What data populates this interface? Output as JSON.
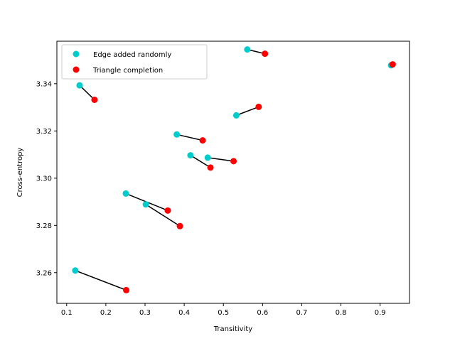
{
  "chart_data": {
    "type": "scatter",
    "xlabel": "Transitivity",
    "ylabel": "Cross-entropy",
    "xlim": [
      0.075,
      0.975
    ],
    "ylim": [
      3.247,
      3.358
    ],
    "x_ticks": [
      "0.1",
      "0.2",
      "0.3",
      "0.4",
      "0.5",
      "0.6",
      "0.7",
      "0.8",
      "0.9"
    ],
    "y_ticks": [
      "3.26",
      "3.28",
      "3.30",
      "3.32",
      "3.34"
    ],
    "grid": false,
    "legend_position": "top-left",
    "series": [
      {
        "name": "Edge added randomly",
        "color": "#00cccc",
        "points": [
          [
            0.561,
            3.3545
          ],
          [
            0.928,
            3.3478
          ],
          [
            0.133,
            3.3393
          ],
          [
            0.533,
            3.3266
          ],
          [
            0.381,
            3.3185
          ],
          [
            0.416,
            3.3097
          ],
          [
            0.46,
            3.3087
          ],
          [
            0.251,
            3.2935
          ],
          [
            0.302,
            3.2889
          ],
          [
            0.122,
            3.2609
          ]
        ]
      },
      {
        "name": "Triangle completion",
        "color": "#ff0000",
        "points": [
          [
            0.606,
            3.3527
          ],
          [
            0.932,
            3.3482
          ],
          [
            0.171,
            3.3332
          ],
          [
            0.59,
            3.3302
          ],
          [
            0.447,
            3.316
          ],
          [
            0.467,
            3.3045
          ],
          [
            0.526,
            3.3072
          ],
          [
            0.358,
            3.2863
          ],
          [
            0.389,
            3.2797
          ],
          [
            0.252,
            3.2526
          ]
        ]
      }
    ],
    "connector_color": "#000000"
  }
}
